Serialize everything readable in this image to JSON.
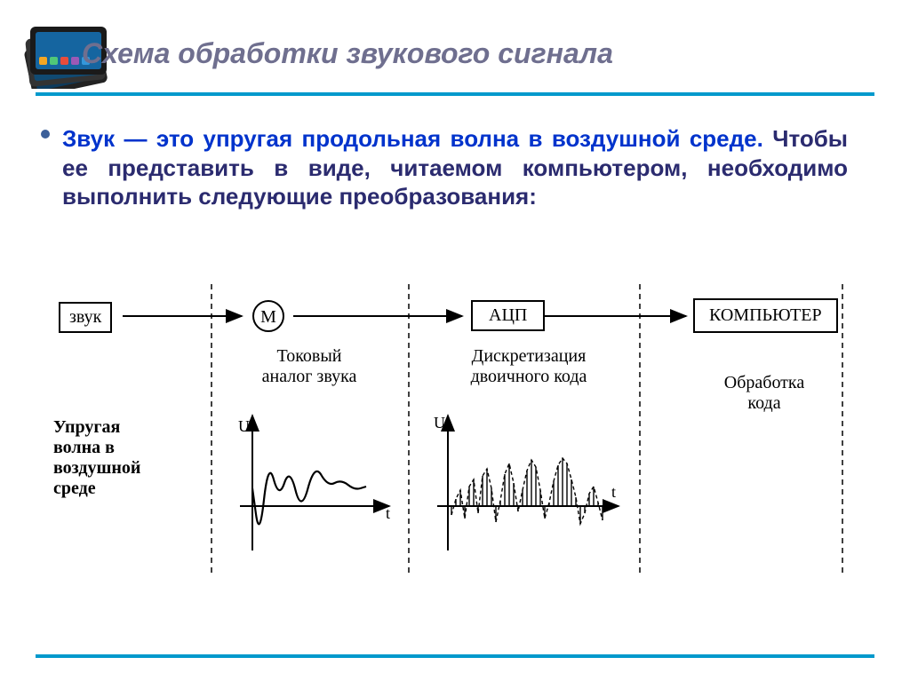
{
  "title": "Схема обработки звукового сигнала",
  "colors": {
    "title": "#6f6f8f",
    "accent_blue": "#0099cc",
    "text_dark": "#2b2b6f",
    "bullet": "#3b5f99",
    "black": "#000000"
  },
  "bullet": {
    "blue_part": "Звук — это упругая продольная волна в воздушной среде.",
    "rest_part": " Чтобы ее представить в виде, читаемом компьютером, необходимо выполнить следующие преобразования:"
  },
  "diagram": {
    "box_sound": "звук",
    "box_adc": "АЦП",
    "box_computer": "КОМПЬЮТЕР",
    "label_m": "М",
    "label_analog": "Токовый\nаналог звука",
    "label_discrete": "Дискретизация\nдвоичного кода",
    "label_processing": "Обработка\nкода",
    "label_wave": "Упругая\nволна в\nвоздушной\nсреде",
    "axis_u": "U",
    "axis_t": "t",
    "analog_wave": {
      "points": [
        [
          0,
          20
        ],
        [
          8,
          -38
        ],
        [
          18,
          52
        ],
        [
          30,
          8
        ],
        [
          42,
          44
        ],
        [
          55,
          -8
        ],
        [
          70,
          48
        ],
        [
          85,
          22
        ],
        [
          100,
          30
        ],
        [
          115,
          18
        ],
        [
          128,
          22
        ]
      ],
      "stroke_width": 2.2
    },
    "discrete_wave": {
      "bars": [
        -10,
        8,
        18,
        -14,
        22,
        30,
        -8,
        34,
        42,
        20,
        -18,
        6,
        36,
        48,
        26,
        -6,
        18,
        40,
        52,
        44,
        18,
        -14,
        4,
        28,
        46,
        54,
        48,
        30,
        10,
        -20,
        -8,
        14,
        22,
        4,
        -16
      ],
      "envelope_dash": "4 3",
      "stroke_width": 1.4
    },
    "dash_pattern": "6 5"
  }
}
